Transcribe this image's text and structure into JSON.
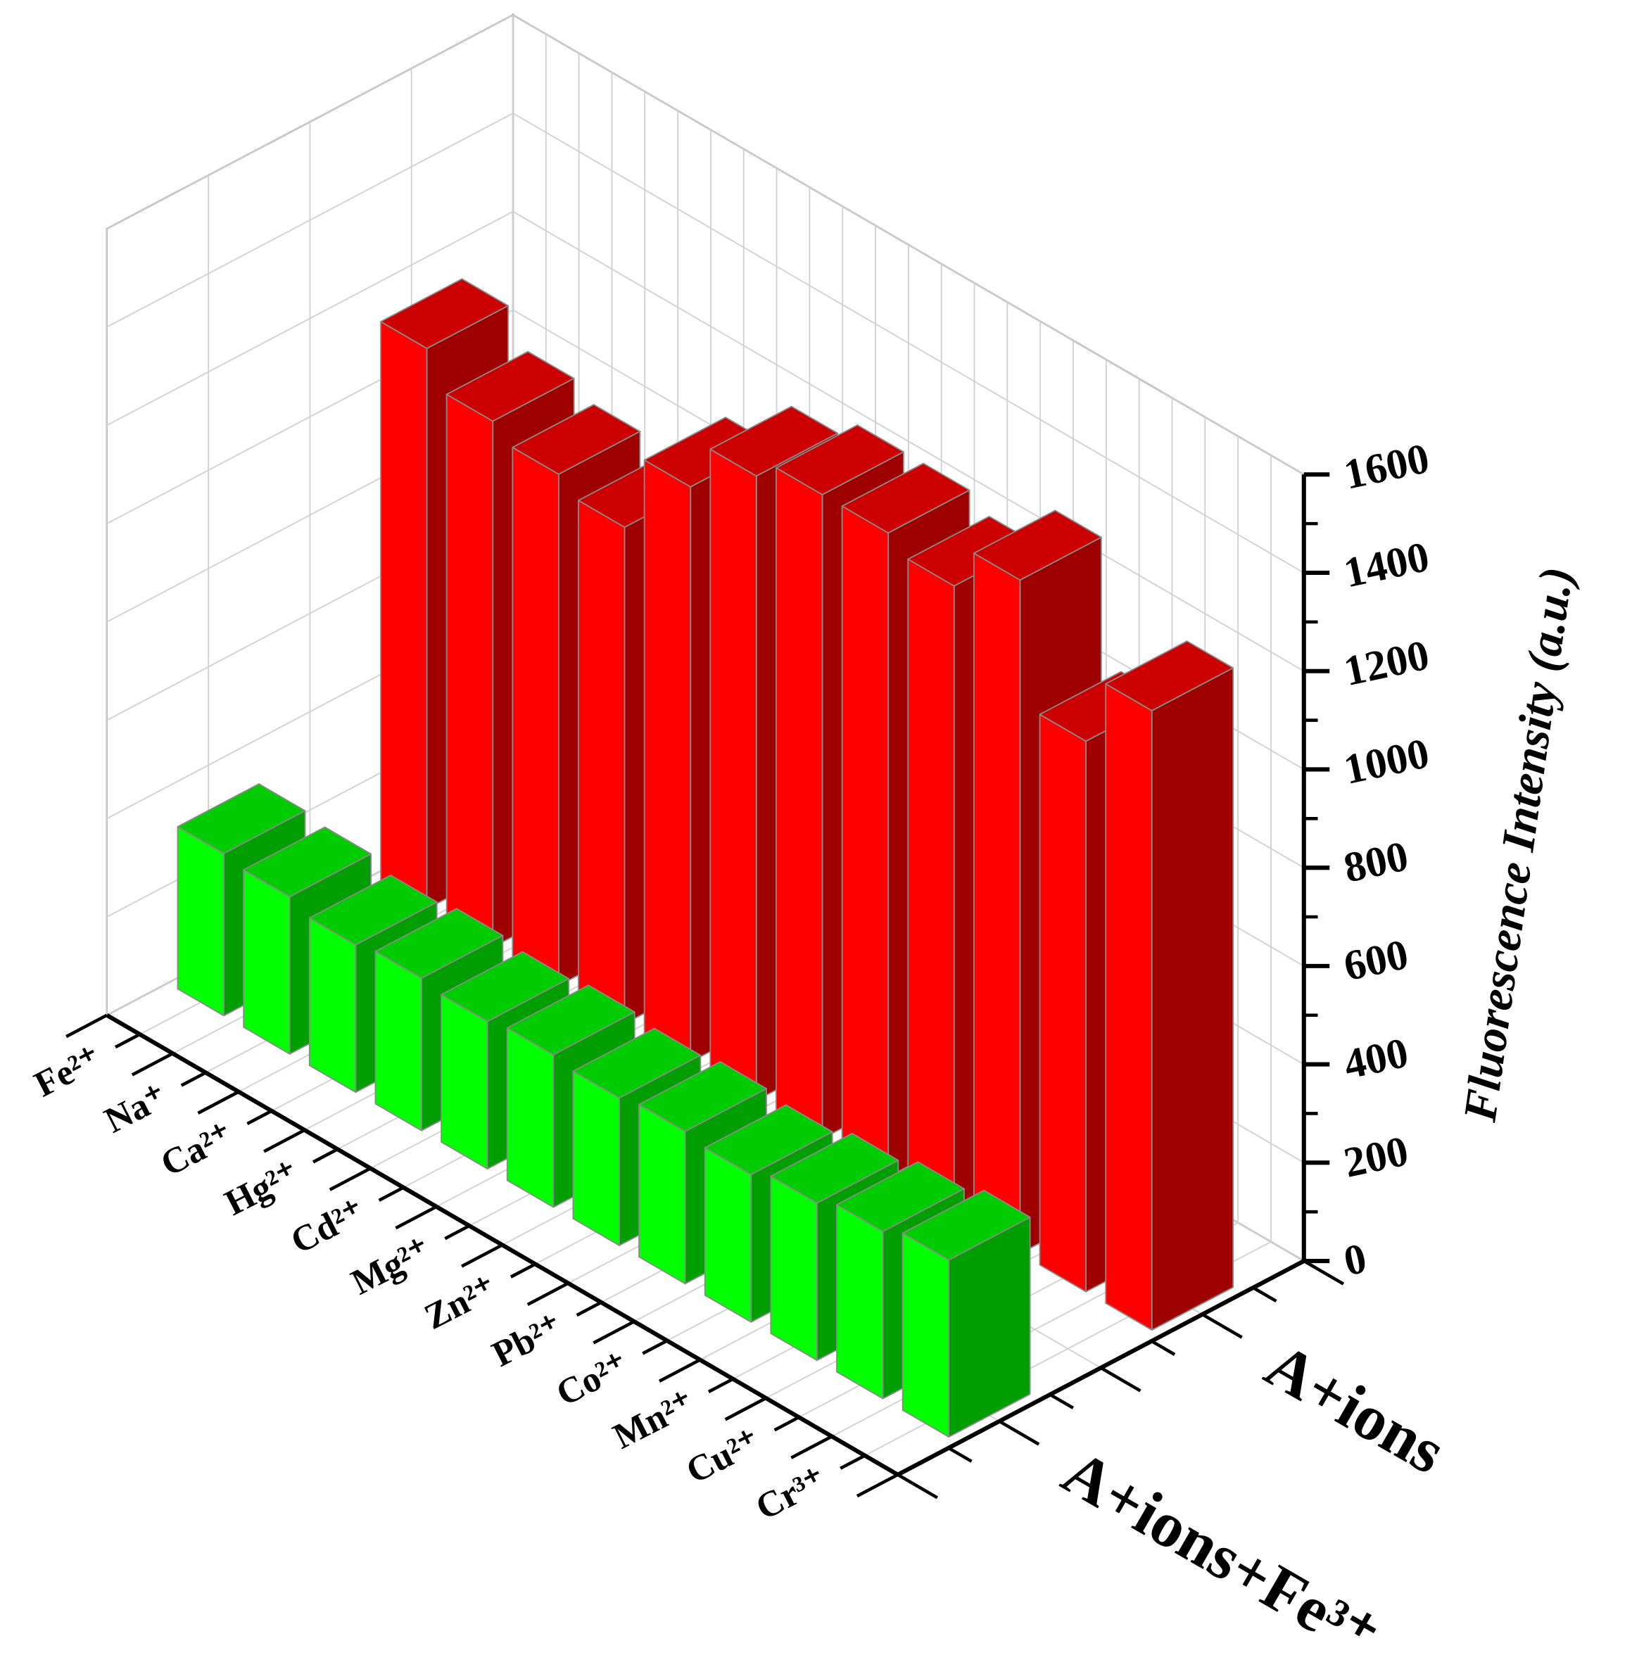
{
  "chart_data": {
    "type": "bar3d",
    "ylabel": "Fluorescence Intensity (a.u.)",
    "categories": [
      "Fe²⁺",
      "Na⁺",
      "Ca²⁺",
      "Hg²⁺",
      "Cd²⁺",
      "Mg²⁺",
      "Zn²⁺",
      "Pb²⁺",
      "Co²⁺",
      "Mn²⁺",
      "Cu²⁺",
      "Cr³⁺"
    ],
    "series": [
      {
        "name": "A+ions+Fe³⁺",
        "color": "#00ff00",
        "values": [
          330,
          320,
          300,
          310,
          300,
          310,
          300,
          310,
          300,
          320,
          340,
          360
        ]
      },
      {
        "name": "A+ions",
        "color": "#ff0000",
        "values": [
          1140,
          1070,
          1040,
          1010,
          1170,
          1270,
          1310,
          1310,
          1280,
          1370,
          1120,
          1260
        ]
      }
    ],
    "ylim": [
      0,
      1600
    ],
    "yticks": [
      0,
      200,
      400,
      600,
      800,
      1000,
      1200,
      1400,
      1600
    ],
    "grid": true
  }
}
